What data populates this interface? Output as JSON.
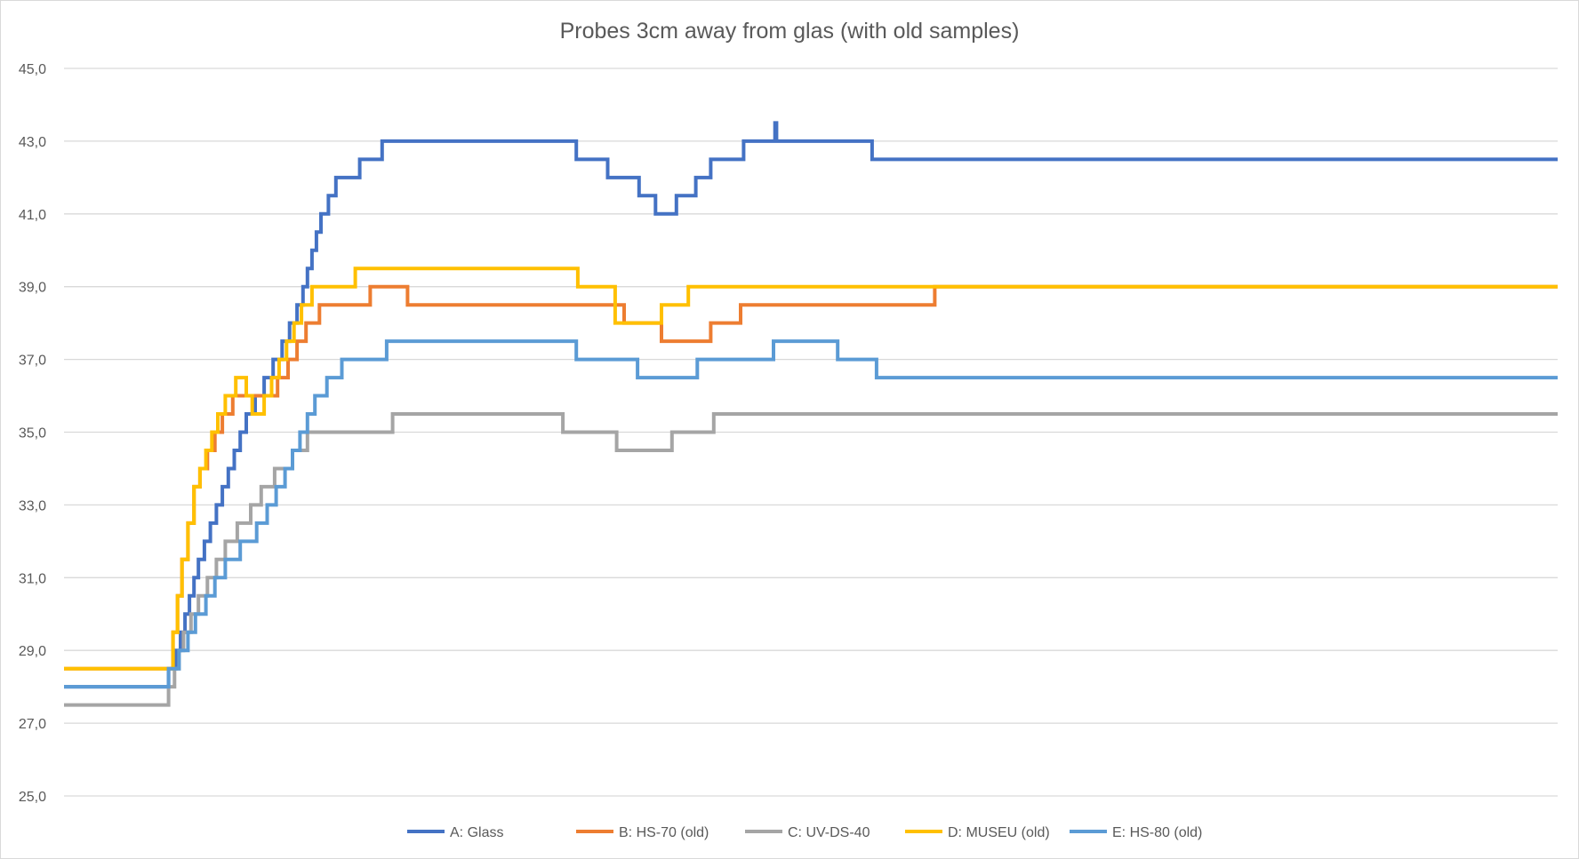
{
  "chart_data": {
    "type": "line",
    "title": "Probes 3cm away from glas (with old samples)",
    "xlabel": "",
    "ylabel": "",
    "ylim": [
      25,
      45
    ],
    "yticks": [
      "25,0",
      "27,0",
      "29,0",
      "31,0",
      "33,0",
      "35,0",
      "37,0",
      "39,0",
      "41,0",
      "43,0",
      "45,0"
    ],
    "grid": true,
    "legend_position": "bottom",
    "x_range": [
      0,
      100
    ],
    "series": [
      {
        "name": "A: Glass",
        "color": "#4472C4",
        "points": [
          [
            0,
            28
          ],
          [
            7,
            28
          ],
          [
            7,
            28.5
          ],
          [
            7.5,
            29
          ],
          [
            7.8,
            29.5
          ],
          [
            8.1,
            30
          ],
          [
            8.4,
            30.5
          ],
          [
            8.7,
            31
          ],
          [
            9,
            31.5
          ],
          [
            9.4,
            32
          ],
          [
            9.8,
            32.5
          ],
          [
            10.2,
            33
          ],
          [
            10.6,
            33.5
          ],
          [
            11,
            34
          ],
          [
            11.4,
            34.5
          ],
          [
            11.8,
            35
          ],
          [
            12.2,
            35.5
          ],
          [
            12.8,
            36
          ],
          [
            13.4,
            36.5
          ],
          [
            14,
            37
          ],
          [
            14.6,
            37.5
          ],
          [
            15.1,
            38
          ],
          [
            15.6,
            38.5
          ],
          [
            16,
            39
          ],
          [
            16.3,
            39.5
          ],
          [
            16.6,
            40
          ],
          [
            16.9,
            40.5
          ],
          [
            17.2,
            41
          ],
          [
            17.7,
            41.5
          ],
          [
            18.2,
            42
          ],
          [
            19.8,
            42.5
          ],
          [
            21.3,
            43
          ],
          [
            34,
            43
          ],
          [
            34.3,
            42.5
          ],
          [
            36,
            42.5
          ],
          [
            36.4,
            42
          ],
          [
            38.1,
            42
          ],
          [
            38.5,
            41.5
          ],
          [
            39.5,
            41.5
          ],
          [
            39.6,
            41
          ],
          [
            40.8,
            41
          ],
          [
            41,
            41.5
          ],
          [
            42,
            41.5
          ],
          [
            42.3,
            42
          ],
          [
            43,
            42
          ],
          [
            43.3,
            42.5
          ],
          [
            45.2,
            42.5
          ],
          [
            45.5,
            43
          ],
          [
            47.5,
            43
          ],
          [
            47.6,
            43.5
          ],
          [
            47.7,
            43
          ],
          [
            53.8,
            43
          ],
          [
            54.1,
            42.5
          ],
          [
            100,
            42.5
          ],
          [
            100,
            42.5
          ]
        ],
        "values_note": ""
      },
      {
        "name": "B: HS-70 (old)",
        "color": "#ED7D31",
        "points": [
          [
            0,
            28.5
          ],
          [
            7,
            28.5
          ],
          [
            7.3,
            29.5
          ],
          [
            7.6,
            30.5
          ],
          [
            7.9,
            31.5
          ],
          [
            8.3,
            32.5
          ],
          [
            8.7,
            33.5
          ],
          [
            9.1,
            34
          ],
          [
            9.6,
            34.5
          ],
          [
            10.1,
            35
          ],
          [
            10.6,
            35.5
          ],
          [
            11.3,
            36
          ],
          [
            13,
            36
          ],
          [
            14.3,
            36.5
          ],
          [
            15,
            37
          ],
          [
            15.6,
            37.5
          ],
          [
            16.2,
            38
          ],
          [
            17.1,
            38.5
          ],
          [
            18.4,
            38.5
          ],
          [
            19,
            38.5
          ],
          [
            20.3,
            38.5
          ],
          [
            20.5,
            39
          ],
          [
            22.5,
            39
          ],
          [
            23,
            38.5
          ],
          [
            37,
            38.5
          ],
          [
            37.5,
            38
          ],
          [
            39.5,
            38
          ],
          [
            40,
            37.5
          ],
          [
            43,
            37.5
          ],
          [
            43.3,
            38
          ],
          [
            45,
            38
          ],
          [
            45.3,
            38.5
          ],
          [
            58,
            38.5
          ],
          [
            58.3,
            39
          ],
          [
            100,
            39
          ]
        ],
        "values_note": ""
      },
      {
        "name": "C: UV-DS-40",
        "color": "#A5A5A5",
        "points": [
          [
            0,
            27.5
          ],
          [
            7,
            27.5
          ],
          [
            7,
            28
          ],
          [
            7.4,
            28.5
          ],
          [
            7.7,
            29
          ],
          [
            8,
            29.5
          ],
          [
            8.5,
            30
          ],
          [
            9,
            30.5
          ],
          [
            9.6,
            31
          ],
          [
            10.2,
            31.5
          ],
          [
            10.8,
            32
          ],
          [
            11.6,
            32.5
          ],
          [
            12.5,
            33
          ],
          [
            13.2,
            33.5
          ],
          [
            14.1,
            34
          ],
          [
            15.3,
            34.5
          ],
          [
            16.3,
            35
          ],
          [
            21.3,
            35
          ],
          [
            22,
            35.5
          ],
          [
            33.2,
            35.5
          ],
          [
            33.4,
            35
          ],
          [
            36.8,
            35
          ],
          [
            37,
            34.5
          ],
          [
            40.5,
            34.5
          ],
          [
            40.7,
            35
          ],
          [
            43.2,
            35
          ],
          [
            43.5,
            35.5
          ],
          [
            100,
            35.5
          ]
        ],
        "values_note": ""
      },
      {
        "name": "D: MUSEU (old)",
        "color": "#FFC000",
        "points": [
          [
            0,
            28.5
          ],
          [
            7,
            28.5
          ],
          [
            7.3,
            29.5
          ],
          [
            7.6,
            30.5
          ],
          [
            7.9,
            31.5
          ],
          [
            8.3,
            32.5
          ],
          [
            8.7,
            33.5
          ],
          [
            9.1,
            34
          ],
          [
            9.5,
            34.5
          ],
          [
            9.9,
            35
          ],
          [
            10.3,
            35.5
          ],
          [
            10.8,
            36
          ],
          [
            11.5,
            36.5
          ],
          [
            12.2,
            36
          ],
          [
            12.6,
            35.5
          ],
          [
            13.4,
            36
          ],
          [
            13.9,
            36.5
          ],
          [
            14.4,
            37
          ],
          [
            14.9,
            37.5
          ],
          [
            15.4,
            38
          ],
          [
            15.9,
            38.5
          ],
          [
            16.6,
            39
          ],
          [
            19.2,
            39
          ],
          [
            19.5,
            39.5
          ],
          [
            34,
            39.5
          ],
          [
            34.4,
            39
          ],
          [
            36.6,
            39
          ],
          [
            36.9,
            38
          ],
          [
            39.6,
            38
          ],
          [
            40,
            38.5
          ],
          [
            41.5,
            38.5
          ],
          [
            41.8,
            39
          ],
          [
            100,
            39
          ]
        ],
        "values_note": ""
      },
      {
        "name": "E: HS-80 (old)",
        "color": "#5B9BD5",
        "points": [
          [
            0,
            28
          ],
          [
            7,
            28
          ],
          [
            7,
            28.5
          ],
          [
            7.7,
            29
          ],
          [
            8.3,
            29.5
          ],
          [
            8.8,
            30
          ],
          [
            9.5,
            30.5
          ],
          [
            10.1,
            31
          ],
          [
            10.8,
            31.5
          ],
          [
            11.8,
            32
          ],
          [
            12.9,
            32.5
          ],
          [
            13.6,
            33
          ],
          [
            14.2,
            33.5
          ],
          [
            14.8,
            34
          ],
          [
            15.3,
            34.5
          ],
          [
            15.8,
            35
          ],
          [
            16.3,
            35.5
          ],
          [
            16.8,
            36
          ],
          [
            17.6,
            36.5
          ],
          [
            18.6,
            37
          ],
          [
            21.3,
            37
          ],
          [
            21.6,
            37.5
          ],
          [
            34,
            37.5
          ],
          [
            34.3,
            37
          ],
          [
            38.1,
            37
          ],
          [
            38.4,
            36.5
          ],
          [
            42.1,
            36.5
          ],
          [
            42.4,
            37
          ],
          [
            47.2,
            37
          ],
          [
            47.5,
            37.5
          ],
          [
            51.5,
            37.5
          ],
          [
            51.8,
            37
          ],
          [
            54.1,
            37
          ],
          [
            54.4,
            36.5
          ],
          [
            100,
            36.5
          ]
        ],
        "values_note": ""
      }
    ]
  }
}
